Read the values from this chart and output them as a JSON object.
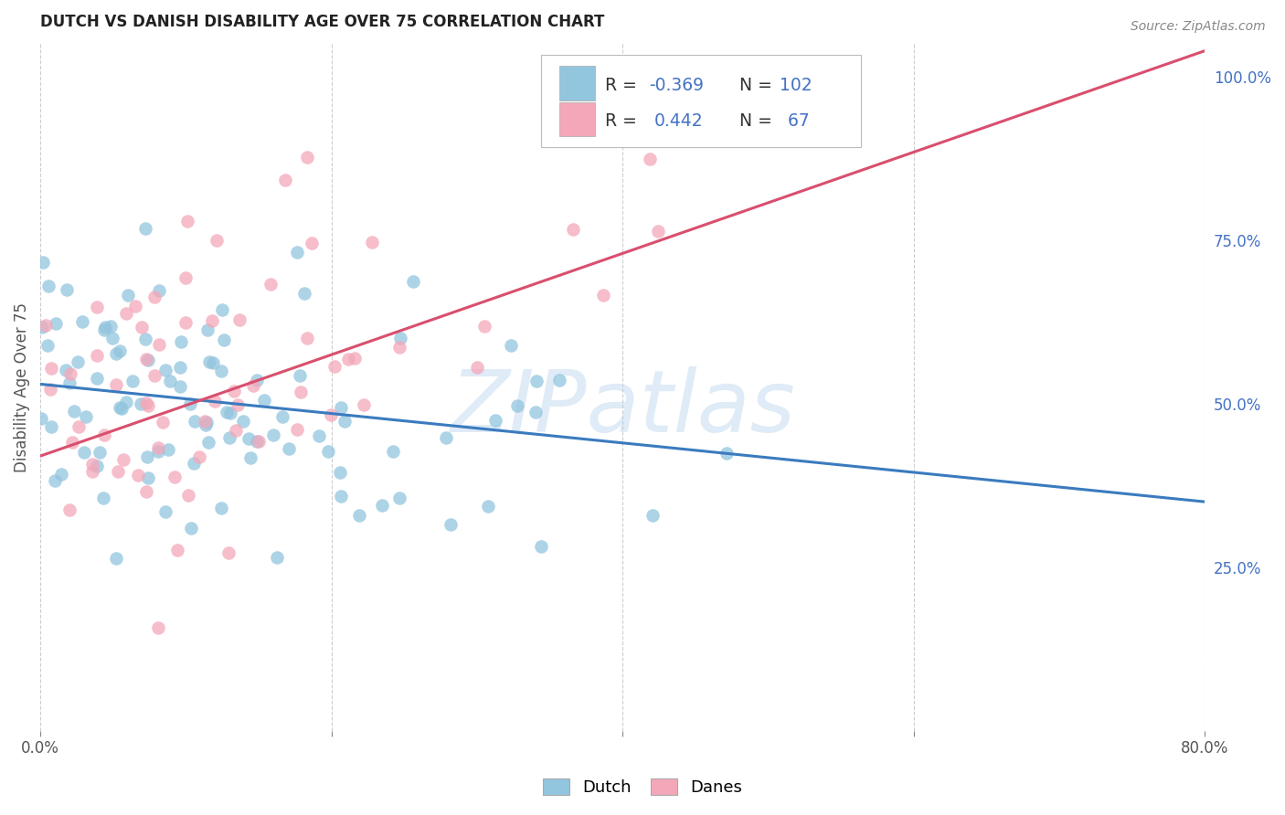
{
  "title": "DUTCH VS DANISH DISABILITY AGE OVER 75 CORRELATION CHART",
  "source": "Source: ZipAtlas.com",
  "ylabel": "Disability Age Over 75",
  "xlim": [
    0.0,
    0.8
  ],
  "ylim": [
    0.0,
    1.05
  ],
  "yticks_right": [
    0.25,
    0.5,
    0.75,
    1.0
  ],
  "ytick_labels_right": [
    "25.0%",
    "50.0%",
    "75.0%",
    "100.0%"
  ],
  "dutch_color": "#92c5de",
  "danish_color": "#f4a7b9",
  "dutch_line_color": "#3a7bbf",
  "danish_line_color": "#d94f6e",
  "dutch_R": -0.369,
  "dutch_N": 102,
  "danish_R": 0.442,
  "danish_N": 67,
  "legend_label_dutch": "Dutch",
  "legend_label_danish": "Danes",
  "watermark": "ZIPatlas",
  "background_color": "#ffffff",
  "grid_color": "#c8c8c8",
  "dutch_seed": 77,
  "danish_seed": 99
}
